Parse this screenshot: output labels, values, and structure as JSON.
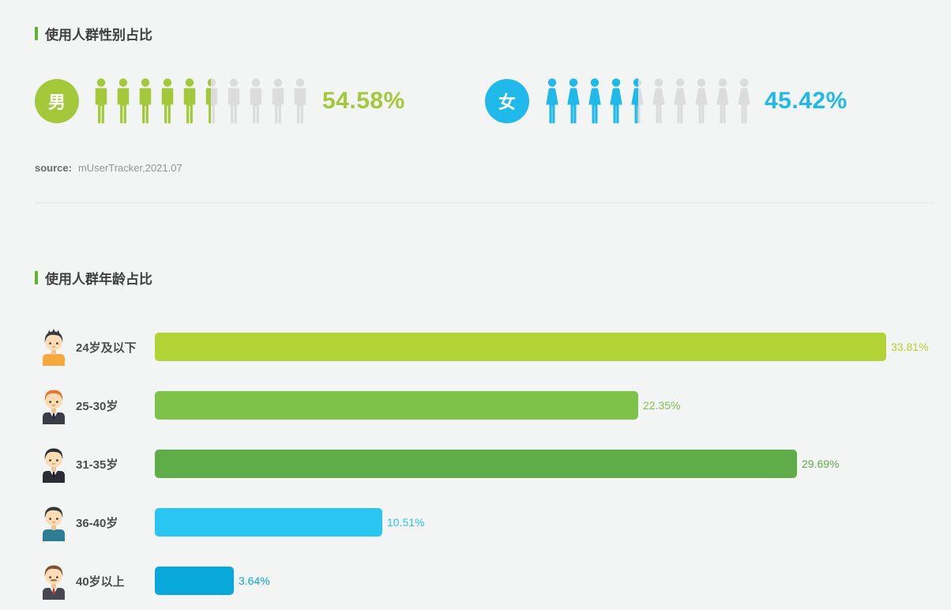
{
  "gender_section": {
    "title": "使用人群性别占比",
    "source_label": "source:",
    "source_value": "mUserTracker,2021.07",
    "male": {
      "label": "男",
      "value": "54.58%",
      "percent": 54.58,
      "color": "#a3c93a",
      "icon_count": 10
    },
    "female": {
      "label": "女",
      "value": "45.42%",
      "percent": 45.42,
      "color": "#1fb9ea",
      "icon_count": 10
    },
    "empty_icon_color": "#dcdcdc"
  },
  "age_section": {
    "title": "使用人群年龄占比",
    "rows": [
      {
        "label": "24岁及以下",
        "value": "33.81%",
        "percent": 33.81,
        "color": "#b2d336",
        "avatar": "young-man-orange-shirt"
      },
      {
        "label": "25-30岁",
        "value": "22.35%",
        "percent": 22.35,
        "color": "#7fc24a",
        "avatar": "orange-hair-man-suit"
      },
      {
        "label": "31-35岁",
        "value": "29.69%",
        "percent": 29.69,
        "color": "#5ead49",
        "avatar": "black-hair-man-suit"
      },
      {
        "label": "36-40岁",
        "value": "10.51%",
        "percent": 10.51,
        "color": "#29c6f1",
        "avatar": "man-teal-shirt"
      },
      {
        "label": "40岁以上",
        "value": "3.64%",
        "percent": 3.64,
        "color": "#09a8db",
        "avatar": "mustache-man-suit"
      }
    ]
  },
  "chart_data": [
    {
      "type": "bar",
      "style": "pictograph",
      "title": "使用人群性别占比",
      "categories": [
        "男",
        "女"
      ],
      "values": [
        54.58,
        45.42
      ],
      "unit": "%",
      "colors": [
        "#a3c93a",
        "#1fb9ea"
      ],
      "icons_per_category": 10,
      "legend_position": "none",
      "source": "mUserTracker,2021.07"
    },
    {
      "type": "bar",
      "orientation": "horizontal",
      "title": "使用人群年龄占比",
      "categories": [
        "24岁及以下",
        "25-30岁",
        "31-35岁",
        "36-40岁",
        "40岁以上"
      ],
      "values": [
        33.81,
        22.35,
        29.69,
        10.51,
        3.64
      ],
      "unit": "%",
      "colors": [
        "#b2d336",
        "#7fc24a",
        "#5ead49",
        "#29c6f1",
        "#09a8db"
      ],
      "xlim": [
        0,
        35
      ],
      "grid": false,
      "data_labels": true,
      "legend_position": "none"
    }
  ]
}
